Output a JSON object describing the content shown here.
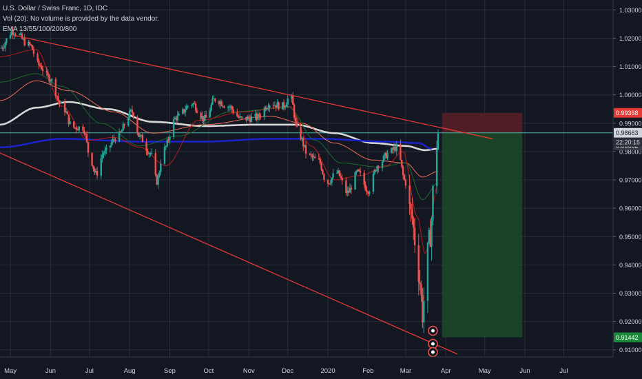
{
  "header": {
    "symbol_line": "U.S. Dollar / Swiss Franc, 1D, IDC",
    "volume_line": "Vol (20): No volume is provided by the data vendor.",
    "ema_line": "EMA 13/55/100/200/800"
  },
  "colors": {
    "background": "#131722",
    "grid": "#2a2e39",
    "axis_text": "#d1d4dc",
    "candle_up": "#26a69a",
    "candle_down": "#ef5350",
    "trendline": "#e53935",
    "ema_200": "#d7d7d7",
    "ema_800": "#1a22c8",
    "ema_100": "#ef6c57",
    "ema_55": "#1e6b2c",
    "ema_13": "#b71c1c",
    "stop_zone": "#5b1e26",
    "target_zone": "#1d4a28",
    "price_line": "#4db6ac"
  },
  "chart_data": {
    "type": "candlestick",
    "symbol": "U.S. Dollar / Swiss Franc",
    "interval": "1D",
    "source": "IDC",
    "y_axis": {
      "ticks": [
        1.03,
        1.02,
        1.01,
        1.0,
        0.99,
        0.98,
        0.97,
        0.96,
        0.95,
        0.94,
        0.93,
        0.92,
        0.91
      ],
      "tick_labels": [
        "1.03000",
        "1.02000",
        "1.01000",
        "1.00000",
        "0.99000",
        "0.98000",
        "0.97000",
        "0.96000",
        "0.95000",
        "0.94000",
        "0.93000",
        "0.92000",
        "0.91000"
      ],
      "range": [
        0.9075,
        1.0335
      ]
    },
    "x_axis": {
      "ticks": [
        {
          "label": "May",
          "day": 0
        },
        {
          "label": "Jun",
          "day": 31
        },
        {
          "label": "Jul",
          "day": 61
        },
        {
          "label": "Aug",
          "day": 92
        },
        {
          "label": "Sep",
          "day": 123
        },
        {
          "label": "Oct",
          "day": 153
        },
        {
          "label": "Nov",
          "day": 184
        },
        {
          "label": "Dec",
          "day": 214
        },
        {
          "label": "2020",
          "day": 245
        },
        {
          "label": "Feb",
          "day": 276
        },
        {
          "label": "Mar",
          "day": 305
        },
        {
          "label": "Apr",
          "day": 336
        },
        {
          "label": "May",
          "day": 366
        },
        {
          "label": "Jun",
          "day": 397
        },
        {
          "label": "Jul",
          "day": 427
        }
      ],
      "range": [
        -8,
        465
      ]
    },
    "price_path": [
      [
        -8,
        1.0165
      ],
      [
        2,
        1.0225
      ],
      [
        15,
        1.0175
      ],
      [
        22,
        1.0105
      ],
      [
        30,
        1.006
      ],
      [
        40,
        0.996
      ],
      [
        48,
        0.9885
      ],
      [
        56,
        0.9885
      ],
      [
        62,
        0.977
      ],
      [
        66,
        0.972
      ],
      [
        72,
        0.9795
      ],
      [
        82,
        0.985
      ],
      [
        94,
        0.994
      ],
      [
        100,
        0.985
      ],
      [
        108,
        0.9795
      ],
      [
        113,
        0.9695
      ],
      [
        118,
        0.9805
      ],
      [
        128,
        0.992
      ],
      [
        140,
        0.997
      ],
      [
        150,
        0.9915
      ],
      [
        158,
        0.9985
      ],
      [
        168,
        0.996
      ],
      [
        178,
        0.9915
      ],
      [
        190,
        0.992
      ],
      [
        200,
        0.997
      ],
      [
        210,
        0.996
      ],
      [
        216,
        0.9995
      ],
      [
        222,
        0.9865
      ],
      [
        230,
        0.9785
      ],
      [
        238,
        0.9765
      ],
      [
        244,
        0.969
      ],
      [
        252,
        0.9725
      ],
      [
        260,
        0.9655
      ],
      [
        268,
        0.9725
      ],
      [
        276,
        0.9665
      ],
      [
        284,
        0.9755
      ],
      [
        292,
        0.9795
      ],
      [
        298,
        0.9815
      ],
      [
        305,
        0.969
      ],
      [
        309,
        0.958
      ],
      [
        313,
        0.947
      ],
      [
        316,
        0.934
      ],
      [
        318,
        0.9225
      ],
      [
        321,
        0.942
      ],
      [
        324,
        0.9505
      ],
      [
        327,
        0.971
      ],
      [
        330,
        0.9865
      ]
    ],
    "emas": {
      "ema_200": [
        [
          -8,
          0.9895
        ],
        [
          20,
          0.9955
        ],
        [
          45,
          0.9975
        ],
        [
          75,
          0.995
        ],
        [
          110,
          0.9905
        ],
        [
          150,
          0.989
        ],
        [
          190,
          0.9895
        ],
        [
          220,
          0.9895
        ],
        [
          250,
          0.9865
        ],
        [
          280,
          0.983
        ],
        [
          305,
          0.982
        ],
        [
          320,
          0.9805
        ],
        [
          330,
          0.981
        ]
      ],
      "ema_800": [
        [
          -8,
          0.9815
        ],
        [
          40,
          0.9845
        ],
        [
          100,
          0.9835
        ],
        [
          150,
          0.9835
        ],
        [
          200,
          0.9845
        ],
        [
          240,
          0.9845
        ],
        [
          290,
          0.9835
        ],
        [
          315,
          0.983
        ],
        [
          325,
          0.981
        ]
      ],
      "ema_100": [
        [
          -8,
          0.998
        ],
        [
          20,
          1.005
        ],
        [
          45,
          1.0015
        ],
        [
          80,
          0.994
        ],
        [
          110,
          0.9865
        ],
        [
          150,
          0.9895
        ],
        [
          200,
          0.9925
        ],
        [
          225,
          0.99
        ],
        [
          250,
          0.983
        ],
        [
          280,
          0.977
        ],
        [
          305,
          0.976
        ],
        [
          318,
          0.971
        ],
        [
          330,
          0.973
        ]
      ],
      "ema_55": [
        [
          -8,
          1.0045
        ],
        [
          20,
          1.0075
        ],
        [
          40,
          1.003
        ],
        [
          70,
          0.99
        ],
        [
          100,
          0.982
        ],
        [
          130,
          0.9855
        ],
        [
          170,
          0.994
        ],
        [
          215,
          0.9955
        ],
        [
          235,
          0.984
        ],
        [
          255,
          0.976
        ],
        [
          285,
          0.9745
        ],
        [
          305,
          0.976
        ],
        [
          318,
          0.963
        ],
        [
          330,
          0.969
        ]
      ],
      "ema_13": [
        [
          -8,
          1.0135
        ],
        [
          20,
          1.016
        ],
        [
          40,
          0.996
        ],
        [
          60,
          0.984
        ],
        [
          80,
          0.985
        ],
        [
          100,
          0.9815
        ],
        [
          120,
          0.975
        ],
        [
          145,
          0.991
        ],
        [
          180,
          0.994
        ],
        [
          215,
          0.996
        ],
        [
          232,
          0.982
        ],
        [
          250,
          0.97
        ],
        [
          270,
          0.9715
        ],
        [
          290,
          0.975
        ],
        [
          303,
          0.98
        ],
        [
          314,
          0.957
        ],
        [
          320,
          0.944
        ],
        [
          330,
          0.9685
        ]
      ]
    },
    "trendlines": [
      {
        "from": [
          3,
          1.021
        ],
        "to": [
          372,
          0.9845
        ]
      },
      {
        "from": [
          -8,
          0.9795
        ],
        "to": [
          345,
          0.9085
        ]
      }
    ],
    "position_tool": {
      "day_start": 333,
      "day_end": 395,
      "entry": 0.98663,
      "stop": 0.99368,
      "target": 0.91442
    },
    "price_labels": [
      {
        "value": 0.99368,
        "text": "0.99368",
        "color": "#e53935"
      },
      {
        "value": 0.98663,
        "text": "0.98663",
        "color": "#1e1e1e"
      },
      {
        "value": 0.98682,
        "text": "0.98682",
        "color": "#363a45"
      },
      {
        "value": 0.91442,
        "text": "0.91442",
        "color": "#1b8a3a"
      }
    ],
    "countdown": "22:20:15"
  }
}
